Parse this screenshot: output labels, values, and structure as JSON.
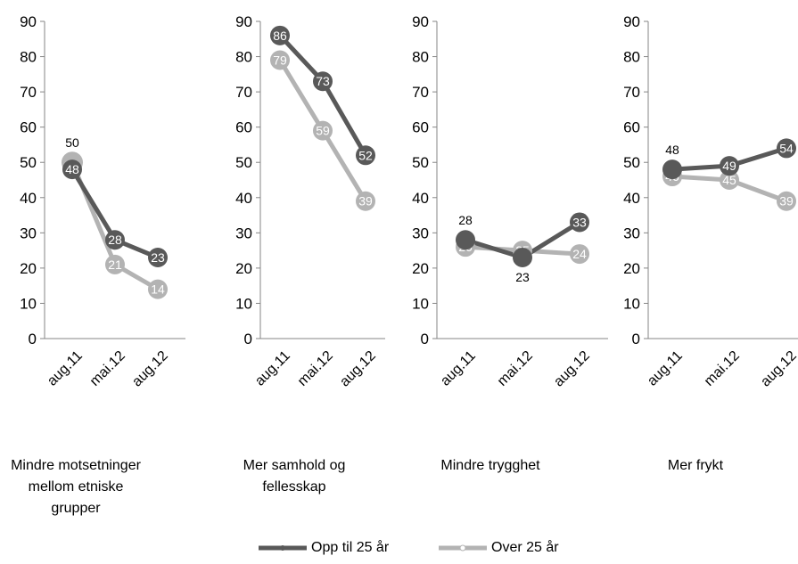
{
  "chart_data": {
    "type": "line",
    "ylim": [
      0,
      90
    ],
    "yticks": [
      0,
      10,
      20,
      30,
      40,
      50,
      60,
      70,
      80,
      90
    ],
    "x": [
      "aug.11",
      "mai.12",
      "aug.12"
    ],
    "colors": {
      "young": "#595959",
      "old": "#b3b3b3"
    },
    "legend": {
      "young": "Opp til 25 år",
      "old": "Over 25 år"
    },
    "panels": [
      {
        "title": "Mindre motsetninger mellom etniske grupper",
        "series": [
          {
            "name": "Opp til 25 år",
            "values": [
              48,
              28,
              23
            ]
          },
          {
            "name": "Over 25 år",
            "values": [
              50,
              21,
              14
            ]
          }
        ]
      },
      {
        "title": "Mer samhold og fellesskap",
        "series": [
          {
            "name": "Opp til 25 år",
            "values": [
              86,
              73,
              52
            ]
          },
          {
            "name": "Over 25 år",
            "values": [
              79,
              59,
              39
            ]
          }
        ]
      },
      {
        "title": "Mindre trygghet",
        "series": [
          {
            "name": "Opp til 25 år",
            "values": [
              28,
              23,
              33
            ]
          },
          {
            "name": "Over 25 år",
            "values": [
              26,
              25,
              24
            ]
          }
        ]
      },
      {
        "title": "Mer frykt",
        "series": [
          {
            "name": "Opp til 25 år",
            "values": [
              48,
              49,
              54
            ]
          },
          {
            "name": "Over 25 år",
            "values": [
              46,
              45,
              39
            ]
          }
        ]
      }
    ]
  }
}
